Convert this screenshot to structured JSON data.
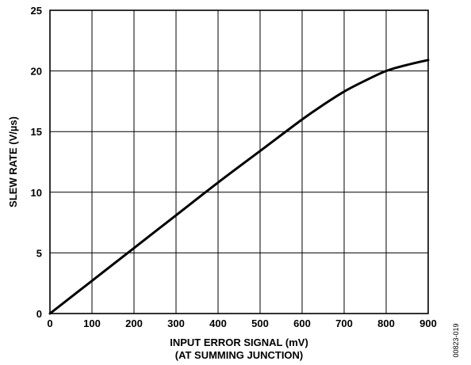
{
  "chart_data": {
    "type": "line",
    "title": "",
    "xlabel_lines": [
      "INPUT ERROR SIGNAL (mV)",
      "(AT SUMMING JUNCTION)"
    ],
    "ylabel": "SLEW RATE (V/µs)",
    "xlim": [
      0,
      900
    ],
    "ylim": [
      0,
      25
    ],
    "xticks": [
      0,
      100,
      200,
      300,
      400,
      500,
      600,
      700,
      800,
      900
    ],
    "yticks": [
      0,
      5,
      10,
      15,
      20,
      25
    ],
    "grid": true,
    "series": [
      {
        "x": [
          0,
          100,
          200,
          300,
          400,
          500,
          600,
          650,
          700,
          750,
          800,
          850,
          900
        ],
        "y": [
          0,
          2.7,
          5.4,
          8.1,
          10.8,
          13.4,
          16.0,
          17.2,
          18.3,
          19.2,
          20.0,
          20.5,
          20.9
        ],
        "color": "#000000"
      }
    ]
  },
  "figure_id": "00823-019"
}
